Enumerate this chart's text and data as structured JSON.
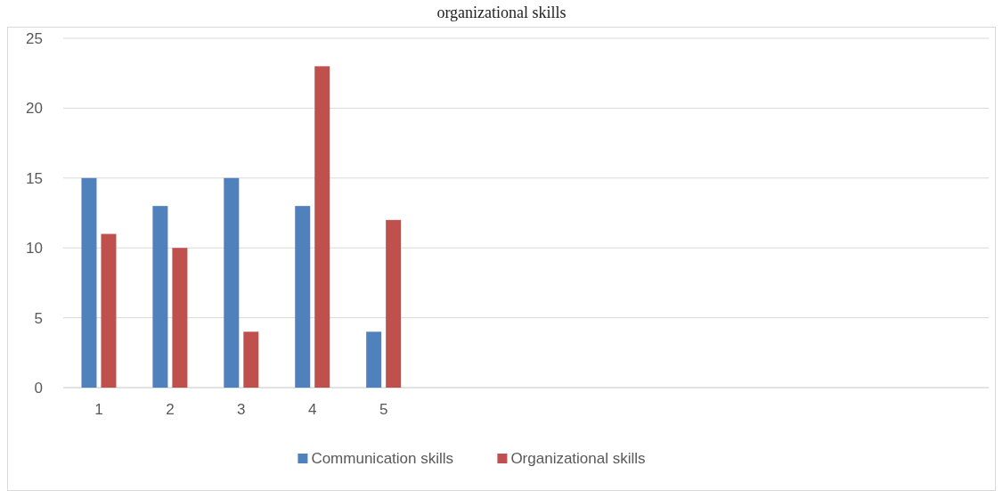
{
  "chart_data": {
    "type": "bar",
    "title": "organizational skills",
    "categories": [
      "1",
      "2",
      "3",
      "4",
      "5",
      null,
      null,
      null,
      null,
      null,
      null,
      null,
      null
    ],
    "series": [
      {
        "name": "Communication skills",
        "color": "#4f81bd",
        "values": [
          15,
          13,
          15,
          13,
          4,
          null,
          null,
          null,
          null,
          null,
          null,
          null,
          null
        ]
      },
      {
        "name": "Organizational skills",
        "color": "#c0504d",
        "values": [
          11,
          10,
          4,
          23,
          12,
          null,
          null,
          null,
          null,
          null,
          null,
          null,
          null
        ]
      }
    ],
    "ylim": [
      0,
      25
    ],
    "yticks": [
      0,
      5,
      10,
      15,
      20,
      25
    ],
    "grid": "y",
    "legend": "bottom"
  }
}
